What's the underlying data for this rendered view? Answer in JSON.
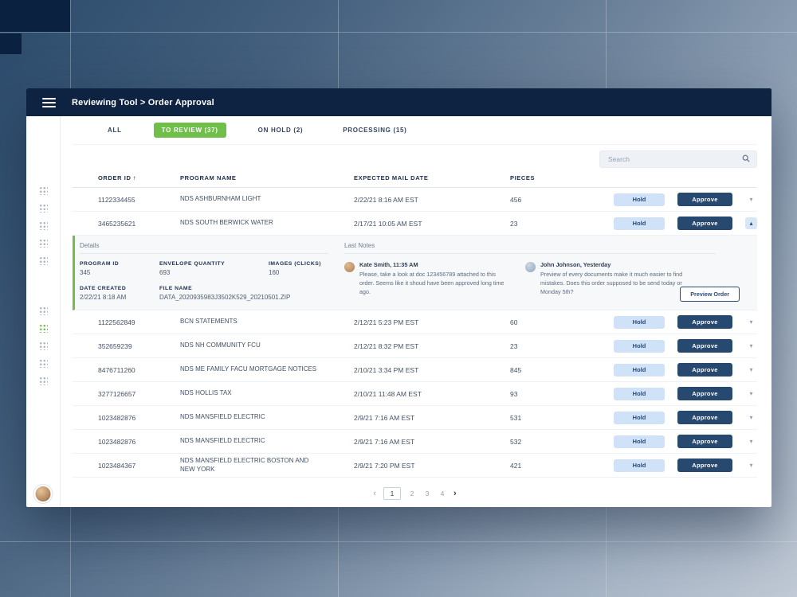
{
  "window": {
    "title": "Reviewing Tool > Order Approval"
  },
  "tabs": [
    {
      "label": "ALL",
      "active": false
    },
    {
      "label": "TO REVIEW (37)",
      "active": true
    },
    {
      "label": "ON HOLD (2)",
      "active": false
    },
    {
      "label": "PROCESSING (15)",
      "active": false
    }
  ],
  "search": {
    "placeholder": "Search"
  },
  "table": {
    "columns": [
      "ORDER ID",
      "PROGRAM NAME",
      "EXPECTED MAIL DATE",
      "PIECES"
    ],
    "sort_icon": "↑",
    "rows": [
      {
        "order_id": "1122334455",
        "program": "NDS ASHBURNHAM LIGHT",
        "mail_date": "2/22/21 8:16 AM EST",
        "pieces": "456",
        "expanded": false
      },
      {
        "order_id": "3465235621",
        "program": "NDS SOUTH BERWICK WATER",
        "mail_date": "2/17/21 10:05 AM EST",
        "pieces": "23",
        "expanded": true
      },
      {
        "order_id": "1122562849",
        "program": "BCN STATEMENTS",
        "mail_date": "2/12/21 5:23 PM EST",
        "pieces": "60",
        "expanded": false
      },
      {
        "order_id": "352659239",
        "program": "NDS NH COMMUNITY FCU",
        "mail_date": "2/12/21 8:32 PM EST",
        "pieces": "23",
        "expanded": false
      },
      {
        "order_id": "8476711260",
        "program": "NDS ME FAMILY FACU MORTGAGE NOTICES",
        "mail_date": "2/10/21 3:34 PM EST",
        "pieces": "845",
        "expanded": false
      },
      {
        "order_id": "3277126657",
        "program": "NDS HOLLIS TAX",
        "mail_date": "2/10/21 11:48 AM EST",
        "pieces": "93",
        "expanded": false
      },
      {
        "order_id": "1023482876",
        "program": "NDS MANSFIELD ELECTRIC",
        "mail_date": "2/9/21 7:16 AM EST",
        "pieces": "531",
        "expanded": false
      },
      {
        "order_id": "1023482876",
        "program": "NDS MANSFIELD ELECTRIC",
        "mail_date": "2/9/21 7:16 AM EST",
        "pieces": "532",
        "expanded": false
      },
      {
        "order_id": "1023484367",
        "program": "NDS MANSFIELD ELECTRIC BOSTON AND NEW YORK",
        "mail_date": "2/9/21 7:20 PM EST",
        "pieces": "421",
        "expanded": false
      }
    ]
  },
  "actions": {
    "hold": "Hold",
    "approve": "Approve"
  },
  "details": {
    "section_title": "Details",
    "fields": [
      {
        "label": "PROGRAM ID",
        "value": "345"
      },
      {
        "label": "ENVELOPE QUANTITY",
        "value": "693"
      },
      {
        "label": "IMAGES (CLICKS)",
        "value": "160"
      },
      {
        "label": "DATE CREATED",
        "value": "2/22/21 8:18 AM"
      },
      {
        "label": "FILE NAME",
        "value": "DATA_2020935983J3502K529_20210501.ZIP"
      }
    ],
    "notes_title": "Last Notes",
    "notes": [
      {
        "author": "Kate Smith, 11:35 AM",
        "text": "Please, take a look at doc 123456789 attached to this order. Seems like it shoud have been approved long time ago."
      },
      {
        "author": "John Johnson, Yesterday",
        "text": "Preview of every documents make it much easier to find mistakes. Does this order supposed to be send today or Monday 5th?"
      }
    ],
    "preview_button": "Preview Order"
  },
  "pagination": {
    "prev": "‹",
    "pages": [
      "1",
      "2",
      "3",
      "4"
    ],
    "active_page": "1",
    "next": "›"
  },
  "sidebar": {
    "handle_groups": [
      5,
      5
    ],
    "active_group": 1,
    "active_index": 1
  },
  "colors": {
    "accent_green": "#6fbf4a",
    "navy": "#0d2341",
    "approve_navy": "#27486f",
    "hold_blue": "#cfe2f7"
  }
}
